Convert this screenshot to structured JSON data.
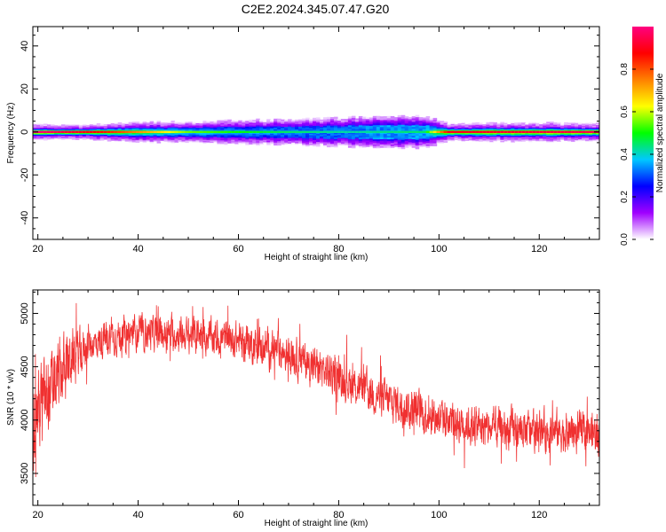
{
  "title": "C2E2.2024.345.07.47.G20",
  "chart_data": [
    {
      "type": "heatmap",
      "xlabel": "Height of straight line (km)",
      "ylabel": "Frequency (Hz)",
      "xlim": [
        19,
        132
      ],
      "ylim": [
        -50,
        49
      ],
      "xticks": [
        20,
        40,
        60,
        80,
        100,
        120
      ],
      "yticks": [
        40,
        20,
        0,
        -20,
        -40
      ],
      "grid": false,
      "band_profile": [
        {
          "x": 19,
          "halfwidth_hz": 3.5,
          "edge_amp": 0.18
        },
        {
          "x": 30,
          "halfwidth_hz": 3.5,
          "edge_amp": 0.2
        },
        {
          "x": 40,
          "halfwidth_hz": 4.5,
          "edge_amp": 0.25
        },
        {
          "x": 60,
          "halfwidth_hz": 5.5,
          "edge_amp": 0.25
        },
        {
          "x": 80,
          "halfwidth_hz": 6.5,
          "edge_amp": 0.3
        },
        {
          "x": 88,
          "halfwidth_hz": 7.5,
          "edge_amp": 0.35
        },
        {
          "x": 97,
          "halfwidth_hz": 7.5,
          "edge_amp": 0.35
        },
        {
          "x": 102,
          "halfwidth_hz": 4.0,
          "edge_amp": 0.2
        },
        {
          "x": 120,
          "halfwidth_hz": 4.5,
          "edge_amp": 0.2
        },
        {
          "x": 132,
          "halfwidth_hz": 4.0,
          "edge_amp": 0.2
        }
      ],
      "centerline": [
        {
          "x": 19,
          "amp": 1.0
        },
        {
          "x": 34,
          "amp": 0.85
        },
        {
          "x": 50,
          "amp": 0.55
        },
        {
          "x": 70,
          "amp": 0.45
        },
        {
          "x": 82,
          "amp": 0.42
        },
        {
          "x": 97,
          "amp": 0.45
        },
        {
          "x": 102,
          "amp": 0.9
        },
        {
          "x": 132,
          "amp": 0.95
        }
      ]
    },
    {
      "type": "line",
      "xlabel": "Height of straight line (km)",
      "ylabel": "SNR (10 * v/v)",
      "xlim": [
        19,
        132
      ],
      "ylim": [
        3200,
        5220
      ],
      "xticks": [
        20,
        40,
        60,
        80,
        100,
        120
      ],
      "yticks": [
        5000,
        4500,
        4000,
        3500
      ],
      "grid": false,
      "series": [
        {
          "color": "#f03030",
          "trend": [
            {
              "x": 19,
              "y": 4050
            },
            {
              "x": 22,
              "y": 4200
            },
            {
              "x": 26,
              "y": 4550
            },
            {
              "x": 30,
              "y": 4700
            },
            {
              "x": 35,
              "y": 4780
            },
            {
              "x": 40,
              "y": 4820
            },
            {
              "x": 50,
              "y": 4800
            },
            {
              "x": 60,
              "y": 4750
            },
            {
              "x": 70,
              "y": 4620
            },
            {
              "x": 80,
              "y": 4400
            },
            {
              "x": 90,
              "y": 4180
            },
            {
              "x": 100,
              "y": 4020
            },
            {
              "x": 110,
              "y": 3920
            },
            {
              "x": 120,
              "y": 3900
            },
            {
              "x": 132,
              "y": 3880
            }
          ],
          "spread": [
            {
              "x": 19,
              "s": 450
            },
            {
              "x": 25,
              "s": 350
            },
            {
              "x": 30,
              "s": 170
            },
            {
              "x": 50,
              "s": 170
            },
            {
              "x": 70,
              "s": 190
            },
            {
              "x": 90,
              "s": 200
            },
            {
              "x": 132,
              "s": 200
            }
          ]
        }
      ]
    }
  ],
  "colorbar": {
    "label": "Normalized spectral amplitude",
    "range": [
      0,
      1
    ],
    "ticks": [
      "0.0",
      "0.2",
      "0.4",
      "0.6",
      "0.8"
    ],
    "tick_values": [
      0.0,
      0.2,
      0.4,
      0.6,
      0.8
    ],
    "stops": [
      "#ffffff",
      "#a000ff",
      "#0000ff",
      "#00c8ff",
      "#00ff00",
      "#ffff00",
      "#ff8000",
      "#ff0000",
      "#ff0080"
    ]
  }
}
